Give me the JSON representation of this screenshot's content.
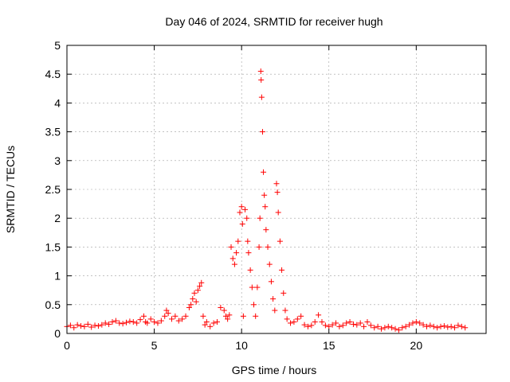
{
  "chart_data": {
    "type": "scatter",
    "title": "Day 046 of 2024, SRMTID for receiver hugh",
    "xlabel": "GPS time / hours",
    "ylabel": "SRMTID / TECUs",
    "xlim": [
      0,
      24
    ],
    "ylim": [
      0,
      5
    ],
    "xticks": [
      0,
      5,
      10,
      15,
      20
    ],
    "xtick_labels": [
      "0",
      "5",
      "10",
      "15",
      "20"
    ],
    "yticks": [
      0,
      0.5,
      1,
      1.5,
      2,
      2.5,
      3,
      3.5,
      4,
      4.5,
      5
    ],
    "ytick_labels": [
      "0",
      "0.5",
      "1",
      "1.5",
      "2",
      "2.5",
      "3",
      "3.5",
      "4",
      "4.5",
      "5"
    ],
    "grid": true,
    "marker": "+",
    "color": "#ff0000",
    "series": [
      {
        "name": "SRMTID",
        "x": [
          0.0,
          0.2,
          0.4,
          0.6,
          0.8,
          1.0,
          1.2,
          1.4,
          1.6,
          1.8,
          2.0,
          2.2,
          2.4,
          2.6,
          2.8,
          3.0,
          3.2,
          3.4,
          3.6,
          3.8,
          4.0,
          4.2,
          4.4,
          4.5,
          4.6,
          4.8,
          5.0,
          5.2,
          5.4,
          5.6,
          5.7,
          5.8,
          6.0,
          6.2,
          6.4,
          6.6,
          6.8,
          7.0,
          7.1,
          7.2,
          7.3,
          7.4,
          7.5,
          7.6,
          7.7,
          7.8,
          7.9,
          8.0,
          8.2,
          8.4,
          8.6,
          8.8,
          9.0,
          9.1,
          9.2,
          9.3,
          9.4,
          9.5,
          9.6,
          9.7,
          9.8,
          9.9,
          10.0,
          10.05,
          10.1,
          10.2,
          10.3,
          10.35,
          10.4,
          10.5,
          10.6,
          10.7,
          10.8,
          10.9,
          11.0,
          11.05,
          11.1,
          11.12,
          11.15,
          11.2,
          11.25,
          11.3,
          11.35,
          11.4,
          11.5,
          11.6,
          11.7,
          11.8,
          11.9,
          12.0,
          12.05,
          12.1,
          12.2,
          12.3,
          12.4,
          12.5,
          12.6,
          12.8,
          13.0,
          13.2,
          13.4,
          13.6,
          13.8,
          14.0,
          14.2,
          14.4,
          14.6,
          14.8,
          15.0,
          15.2,
          15.4,
          15.6,
          15.8,
          16.0,
          16.2,
          16.4,
          16.6,
          16.8,
          17.0,
          17.2,
          17.4,
          17.6,
          17.8,
          18.0,
          18.2,
          18.4,
          18.6,
          18.8,
          19.0,
          19.2,
          19.4,
          19.6,
          19.8,
          20.0,
          20.2,
          20.4,
          20.6,
          20.8,
          21.0,
          21.2,
          21.4,
          21.6,
          21.8,
          22.0,
          22.2,
          22.4,
          22.6,
          22.8
        ],
        "y": [
          0.12,
          0.14,
          0.1,
          0.15,
          0.13,
          0.12,
          0.16,
          0.11,
          0.14,
          0.13,
          0.15,
          0.18,
          0.16,
          0.2,
          0.22,
          0.18,
          0.17,
          0.19,
          0.21,
          0.2,
          0.18,
          0.24,
          0.3,
          0.2,
          0.18,
          0.25,
          0.2,
          0.18,
          0.22,
          0.3,
          0.4,
          0.35,
          0.25,
          0.3,
          0.22,
          0.25,
          0.3,
          0.45,
          0.5,
          0.6,
          0.7,
          0.55,
          0.75,
          0.82,
          0.88,
          0.3,
          0.15,
          0.2,
          0.12,
          0.18,
          0.2,
          0.45,
          0.4,
          0.3,
          0.25,
          0.32,
          1.5,
          1.3,
          1.2,
          1.4,
          1.6,
          2.1,
          2.2,
          1.9,
          0.3,
          2.15,
          2.0,
          1.6,
          1.4,
          1.1,
          0.8,
          0.5,
          0.3,
          0.8,
          1.5,
          2.0,
          4.55,
          4.4,
          4.1,
          3.5,
          2.8,
          2.4,
          2.2,
          1.8,
          1.5,
          1.2,
          0.9,
          0.6,
          0.4,
          2.6,
          2.45,
          2.1,
          1.6,
          1.1,
          0.7,
          0.4,
          0.25,
          0.18,
          0.2,
          0.25,
          0.3,
          0.15,
          0.12,
          0.14,
          0.2,
          0.32,
          0.2,
          0.14,
          0.12,
          0.15,
          0.18,
          0.12,
          0.14,
          0.18,
          0.2,
          0.16,
          0.15,
          0.18,
          0.12,
          0.2,
          0.14,
          0.1,
          0.12,
          0.08,
          0.1,
          0.12,
          0.1,
          0.08,
          0.06,
          0.1,
          0.12,
          0.15,
          0.18,
          0.2,
          0.18,
          0.15,
          0.12,
          0.14,
          0.12,
          0.1,
          0.12,
          0.13,
          0.11,
          0.12,
          0.1,
          0.14,
          0.12,
          0.1
        ]
      }
    ]
  }
}
